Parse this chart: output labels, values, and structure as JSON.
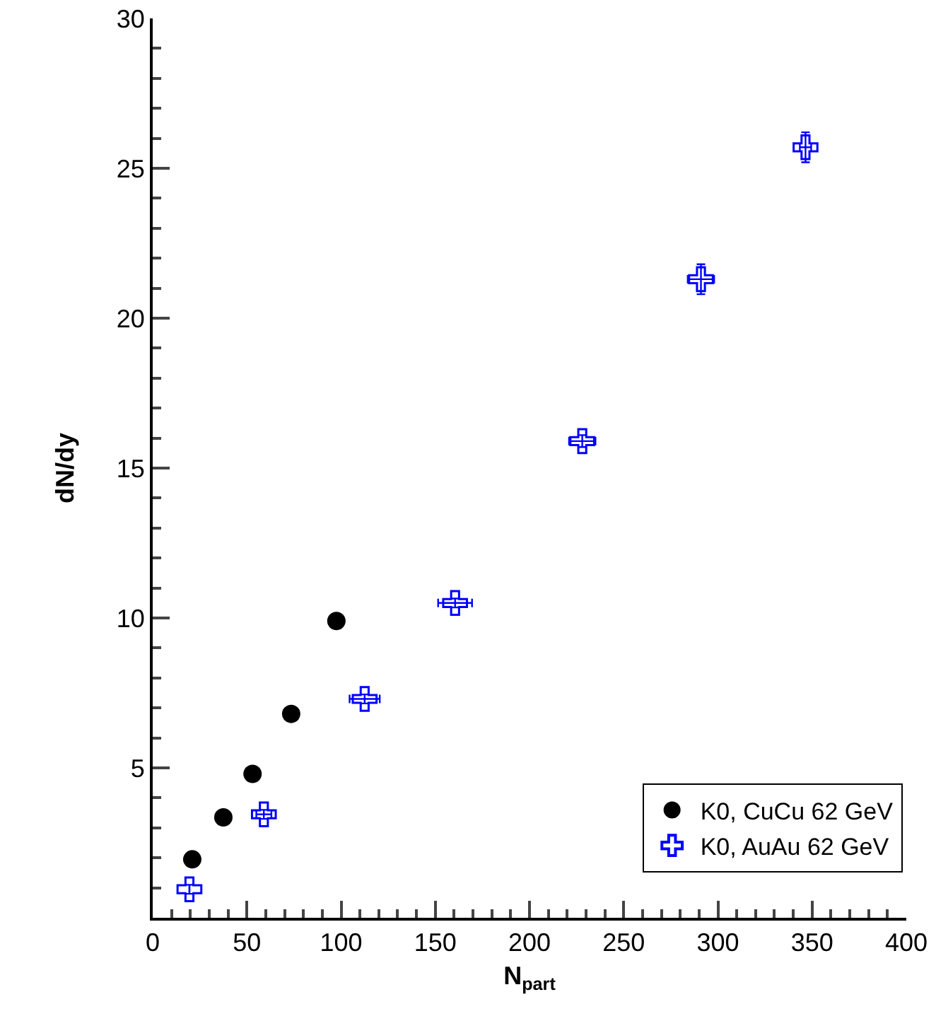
{
  "chart_data": {
    "type": "scatter",
    "xlabel": "N$_{part}$",
    "ylabel": "dN/dy",
    "xlim": [
      0,
      400
    ],
    "xticks": [
      0,
      50,
      100,
      150,
      200,
      250,
      300,
      350,
      400
    ],
    "ylim": [
      0,
      30
    ],
    "yticks": [
      5,
      10,
      15,
      20,
      25,
      30
    ],
    "grid": false,
    "legend": "bottom right",
    "marker": "circle",
    "series": [
      {
        "name": "K0, CuCu 62 GeV",
        "color": "#000000",
        "x": [
          21,
          37.5,
          53,
          73.5,
          97.5
        ],
        "values": [
          1.95,
          3.35,
          4.8,
          6.8,
          9.9
        ]
      },
      {
        "name": "K0, AuAu 62 GeV",
        "color": "#0000ff",
        "marker": "cross",
        "x": [
          19.5,
          59,
          112.5,
          160.5,
          228,
          291,
          346.5
        ],
        "values": [
          0.95,
          3.45,
          7.3,
          10.5,
          15.9,
          21.3,
          25.7
        ],
        "xerrors": [
          null,
          4,
          8,
          9,
          7,
          7,
          3
        ],
        "errors": [
          0.15,
          0.15,
          0.15,
          0.15,
          0.2,
          0.5,
          0.5
        ]
      }
    ]
  }
}
